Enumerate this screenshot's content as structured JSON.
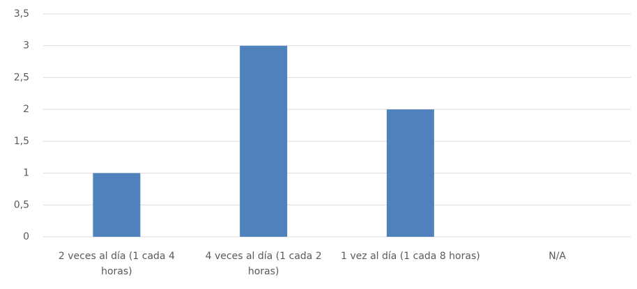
{
  "chart_data": {
    "type": "bar",
    "categories": [
      "2 veces al día (1 cada 4 horas)",
      "4 veces al día (1 cada 2 horas)",
      "1 vez al día (1 cada 8 horas)",
      "N/A"
    ],
    "values": [
      1,
      3,
      2,
      0
    ],
    "color": "#4f81bd",
    "ylim": [
      0,
      3.5
    ],
    "yticks": [
      0,
      {
        "value": 0.5,
        "label": "0,5"
      },
      1,
      {
        "value": 1.5,
        "label": "1,5"
      },
      2,
      {
        "value": 2.5,
        "label": "2,5"
      },
      3,
      {
        "value": 3.5,
        "label": "3,5"
      }
    ],
    "grid": true
  }
}
